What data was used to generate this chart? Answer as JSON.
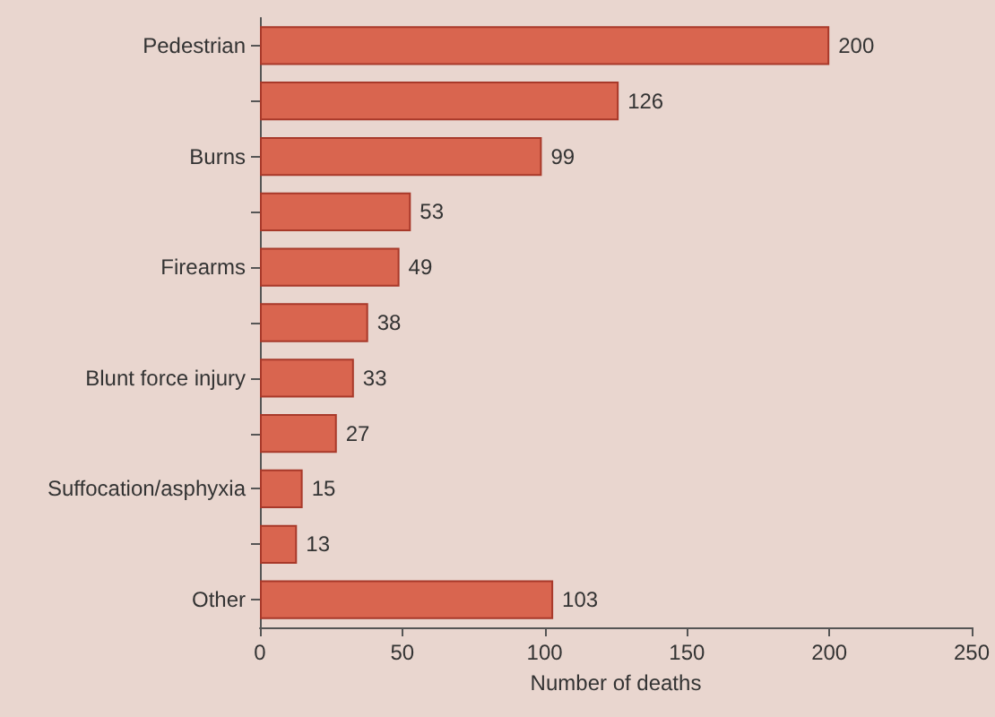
{
  "chart_data": {
    "type": "bar",
    "orientation": "horizontal",
    "xlabel": "Number of deaths",
    "categories": [
      "Pedestrian",
      null,
      "Burns",
      null,
      "Firearms",
      null,
      "Blunt force injury",
      null,
      "Suffocation/asphyxia",
      null,
      "Other"
    ],
    "values": [
      200,
      126,
      99,
      53,
      49,
      38,
      33,
      27,
      15,
      13,
      103
    ],
    "color": "#d9654f",
    "data_labels": true,
    "xlim": [
      0,
      250
    ],
    "xticks": [
      0,
      50,
      100,
      150,
      200,
      250
    ]
  }
}
